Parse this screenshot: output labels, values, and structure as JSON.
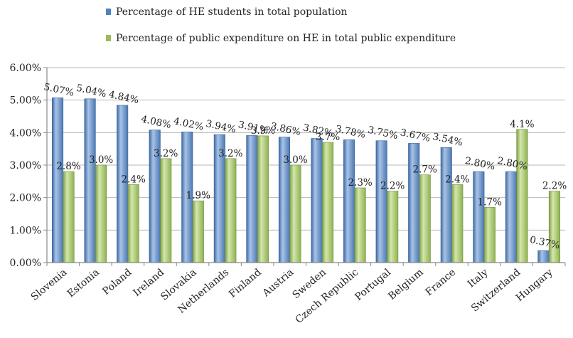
{
  "chart_data": {
    "type": "bar",
    "title": "",
    "xlabel": "",
    "ylabel": "",
    "ylim": [
      0,
      6
    ],
    "y_ticks": [
      "0.00%",
      "1.00%",
      "2.00%",
      "3.00%",
      "4.00%",
      "5.00%",
      "6.00%"
    ],
    "grid": true,
    "legend_position": "top",
    "categories": [
      "Slovenia",
      "Estonia",
      "Poland",
      "Ireland",
      "Slovakia",
      "Netherlands",
      "Finland",
      "Austria",
      "Sweden",
      "Czech Republic",
      "Portugal",
      "Belgium",
      "France",
      "Italy",
      "Switzerland",
      "Hungary"
    ],
    "series": [
      {
        "name": "Percentage of HE students in total population",
        "color": "#4f81bd",
        "values": [
          5.07,
          5.04,
          4.84,
          4.08,
          4.02,
          3.94,
          3.91,
          3.86,
          3.82,
          3.78,
          3.75,
          3.67,
          3.54,
          2.8,
          2.8,
          0.37
        ],
        "labels": [
          "5.07%",
          "5.04%",
          "4.84%",
          "4.08%",
          "4.02%",
          "3.94%",
          "3.91%",
          "3.86%",
          "3.82%",
          "3.78%",
          "3.75%",
          "3.67%",
          "3.54%",
          "2.80%",
          "2.80%",
          "0.37%"
        ]
      },
      {
        "name": "Percentage of public expenditure on HE in total public expenditure",
        "color": "#9bbb59",
        "values": [
          2.8,
          3.0,
          2.4,
          3.2,
          1.9,
          3.2,
          3.9,
          3.0,
          3.7,
          2.3,
          2.2,
          2.7,
          2.4,
          1.7,
          4.1,
          2.2
        ],
        "labels": [
          "2.8%",
          "3.0%",
          "2.4%",
          "3.2%",
          "1.9%",
          "3.2%",
          "3.9%",
          "3.0%",
          "3.7%",
          "2.3%",
          "2.2%",
          "2.7%",
          "2.4%",
          "1.7%",
          "4.1%",
          "2.2%"
        ]
      }
    ]
  }
}
